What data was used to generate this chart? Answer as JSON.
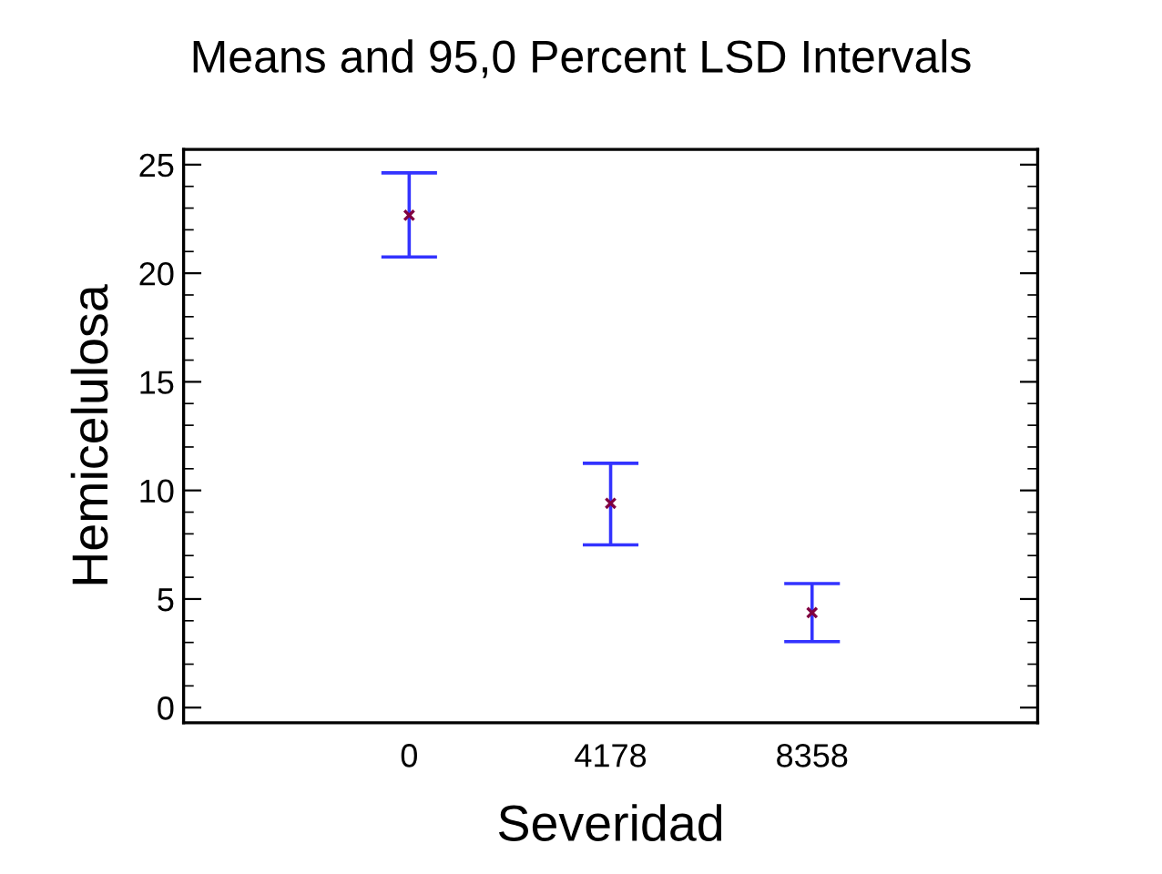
{
  "chart_data": {
    "type": "scatter",
    "title": "Means and 95,0 Percent LSD Intervals",
    "xlabel": "Severidad",
    "ylabel": "Hemicelulosa",
    "categories": [
      "0",
      "4178",
      "8358"
    ],
    "series": [
      {
        "color": "#800040",
        "values": [
          22.67,
          9.41,
          4.37
        ],
        "errors": [
          [
            20.75,
            24.62
          ],
          [
            7.49,
            11.25
          ],
          [
            3.04,
            5.71
          ]
        ]
      }
    ],
    "ylim": [
      -0.7,
      25.7
    ],
    "yticks": [
      0,
      5,
      10,
      15,
      20,
      25
    ],
    "marker": "cross",
    "grid": false,
    "legend": false
  }
}
